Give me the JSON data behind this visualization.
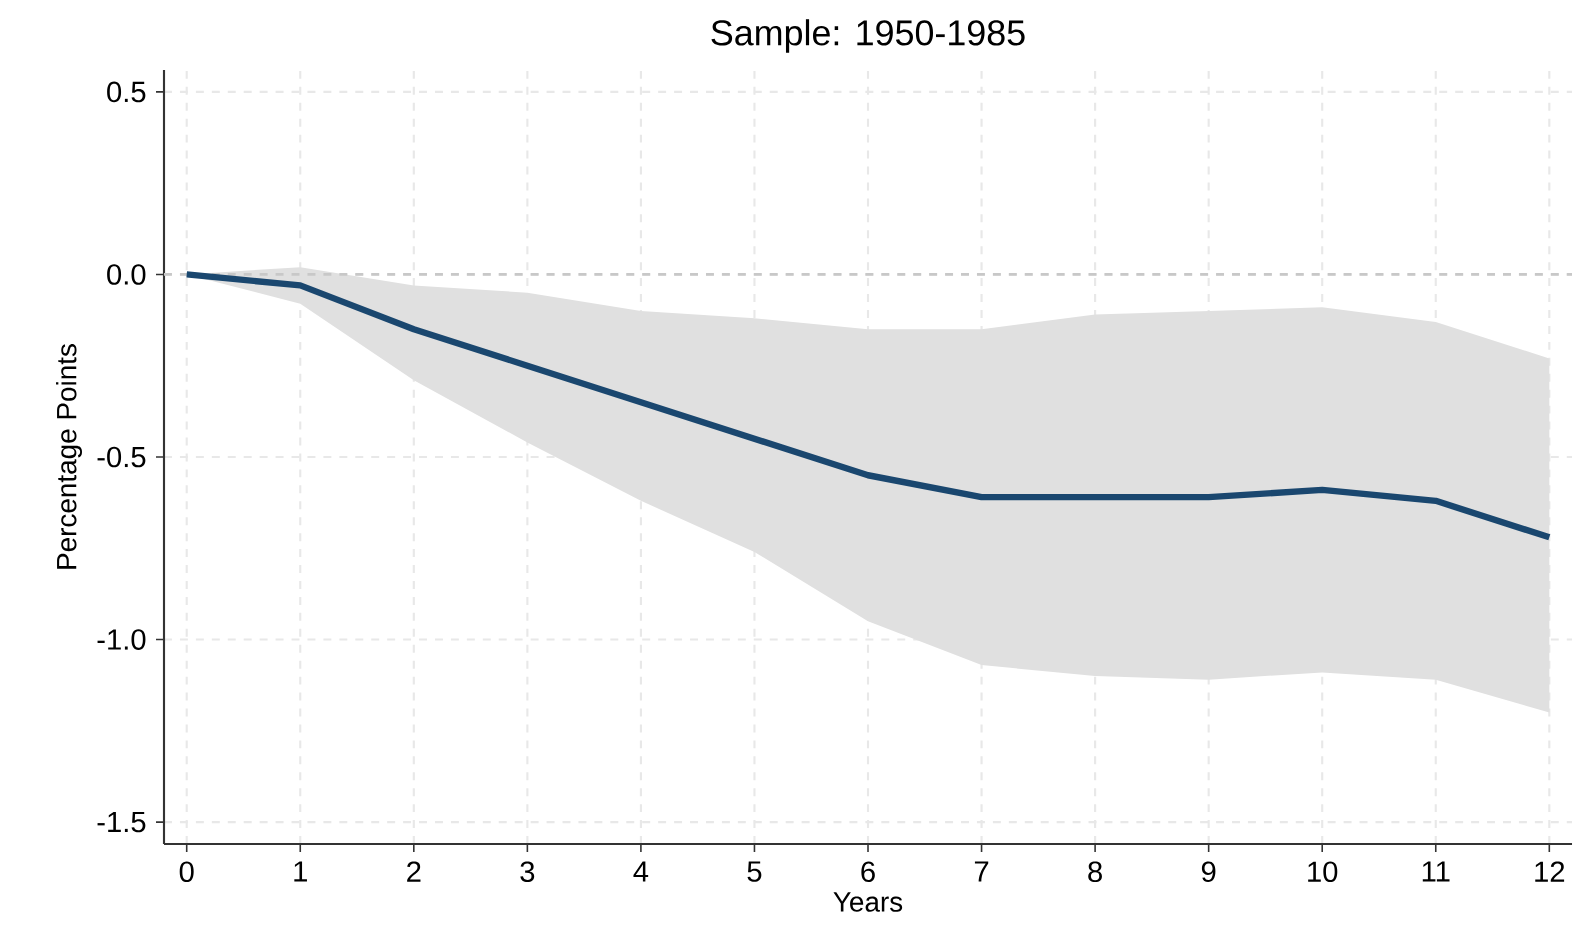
{
  "chart_data": {
    "type": "line",
    "title": "Sample: 1950-1985",
    "xlabel": "Years",
    "ylabel": "Percentage Points",
    "x": [
      0,
      1,
      2,
      3,
      4,
      5,
      6,
      7,
      8,
      9,
      10,
      11,
      12
    ],
    "series": [
      {
        "color": "#1a476f",
        "values": [
          0,
          -0.03,
          -0.15,
          -0.25,
          -0.35,
          -0.45,
          -0.55,
          -0.61,
          -0.61,
          -0.61,
          -0.59,
          -0.62,
          -0.72
        ],
        "lower": [
          0,
          -0.08,
          -0.29,
          -0.46,
          -0.62,
          -0.76,
          -0.95,
          -1.07,
          -1.1,
          -1.11,
          -1.09,
          -1.11,
          -1.2
        ],
        "upper": [
          0,
          0.02,
          -0.03,
          -0.05,
          -0.1,
          -0.12,
          -0.15,
          -0.15,
          -0.11,
          -0.1,
          -0.09,
          -0.13,
          -0.23
        ]
      }
    ],
    "xlim": [
      -0.2,
      12.2
    ],
    "ylim": [
      -1.56,
      0.56
    ],
    "xticks": [
      0,
      1,
      2,
      3,
      4,
      5,
      6,
      7,
      8,
      9,
      10,
      11,
      12
    ],
    "yticks": [
      {
        "value": -1.5,
        "label": "-1.5"
      },
      {
        "value": -1.0,
        "label": "-1.0"
      },
      {
        "value": -0.5,
        "label": "-0.5"
      },
      {
        "value": 0.0,
        "label": "0.0"
      },
      {
        "value": 0.5,
        "label": "0.5"
      }
    ],
    "grid": true,
    "line_style": "solid",
    "marker": "none",
    "ref_lines": [
      {
        "axis": "y",
        "value": 0,
        "color": "#c8c8c8",
        "line_style": "dashed"
      }
    ]
  }
}
